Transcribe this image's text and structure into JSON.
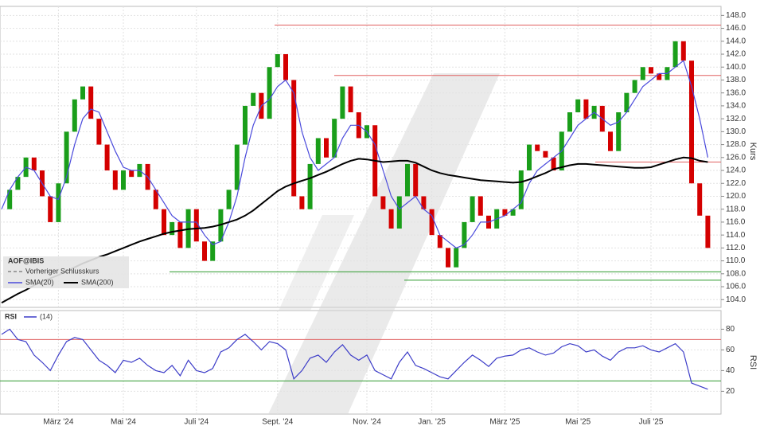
{
  "chart_data": [
    {
      "type": "candlestick",
      "x": [
        null,
        null,
        null,
        null,
        null,
        null,
        null,
        "März '24",
        null,
        null,
        null,
        null,
        null,
        null,
        null,
        "Mai '24",
        null,
        null,
        null,
        null,
        null,
        null,
        null,
        null,
        "Juli '24",
        null,
        null,
        null,
        null,
        null,
        null,
        null,
        null,
        null,
        "Sept. '24",
        null,
        null,
        null,
        null,
        null,
        null,
        null,
        null,
        null,
        null,
        "Nov. '24",
        null,
        null,
        null,
        null,
        null,
        null,
        null,
        "Jan. '25",
        null,
        null,
        null,
        null,
        null,
        null,
        null,
        null,
        "März '25",
        null,
        null,
        null,
        null,
        null,
        null,
        null,
        null,
        "Mai '25",
        null,
        null,
        null,
        null,
        null,
        null,
        null,
        null,
        "Juli '25",
        null,
        null,
        null,
        null,
        null,
        null,
        null
      ],
      "series": [
        {
          "name": "AOF@IBIS",
          "up_color": "#1a9e1a",
          "down_color": "#d40000",
          "values": [
            118,
            121,
            123,
            126,
            124,
            120,
            116,
            122,
            130,
            135,
            137,
            132,
            128,
            124,
            121,
            124,
            123,
            125,
            121,
            118,
            114,
            116,
            112,
            118,
            113,
            110,
            113,
            118,
            121,
            128,
            134,
            136,
            132,
            140,
            142,
            138,
            120,
            118,
            125,
            129,
            126,
            132,
            137,
            133,
            129,
            131,
            120,
            118,
            115,
            120,
            125,
            120,
            118,
            114,
            112,
            109,
            112,
            116,
            120,
            117,
            115,
            118,
            117,
            118,
            124,
            128,
            127,
            126,
            124,
            130,
            133,
            135,
            132,
            134,
            130,
            127,
            133,
            136,
            138,
            140,
            139,
            138,
            140,
            144,
            141,
            122,
            117,
            112
          ]
        },
        {
          "name": "SMA(20)",
          "color": "#4a4adc",
          "values": [
            118,
            121,
            123,
            124.5,
            124,
            122,
            120,
            119.5,
            123,
            128,
            132,
            133.5,
            133,
            130,
            127,
            124.5,
            124,
            124,
            123,
            121,
            119,
            117,
            116,
            116,
            116,
            114,
            112.5,
            113,
            116,
            120,
            126,
            131,
            134,
            135,
            137,
            138,
            136,
            130,
            126,
            124,
            125,
            126,
            129,
            131,
            131,
            130,
            128,
            124,
            120,
            118,
            119,
            120,
            118,
            117,
            114,
            113,
            112,
            112.5,
            114,
            116,
            116,
            116.5,
            117,
            118,
            119,
            122,
            124,
            125,
            126,
            127,
            129,
            131,
            132,
            133,
            132,
            131,
            131.5,
            133,
            135,
            137,
            138,
            139,
            139,
            140,
            141,
            137,
            132,
            126
          ]
        },
        {
          "name": "SMA(200)",
          "color": "#000000",
          "values": [
            103.5,
            104.2,
            104.9,
            105.5,
            106.2,
            106.8,
            107.3,
            107.8,
            108.4,
            109,
            109.6,
            110.1,
            110.6,
            111,
            111.5,
            112,
            112.5,
            113,
            113.4,
            113.8,
            114.2,
            114.5,
            114.7,
            114.9,
            115,
            115.1,
            115.3,
            115.6,
            116,
            116.4,
            117,
            117.8,
            118.8,
            119.8,
            120.8,
            121.5,
            122,
            122.4,
            122.8,
            123.3,
            123.8,
            124.4,
            125,
            125.5,
            125.8,
            125.7,
            125.5,
            125.3,
            125.4,
            125.5,
            125.5,
            125.2,
            124.6,
            124,
            123.6,
            123.3,
            123.1,
            122.9,
            122.7,
            122.5,
            122.4,
            122.3,
            122.2,
            122.1,
            122.2,
            122.6,
            123.1,
            123.6,
            124.2,
            124.5,
            124.8,
            125,
            125,
            124.9,
            124.8,
            124.7,
            124.6,
            124.5,
            124.4,
            124.4,
            124.5,
            124.9,
            125.3,
            125.7,
            126,
            125.9,
            125.5,
            125.3
          ]
        }
      ],
      "legend_extra": "Vorheriger Schlusskurs",
      "reference_lines": [
        {
          "value": 146.5,
          "color": "#e06060"
        },
        {
          "value": 138.7,
          "color": "#e06060"
        },
        {
          "value": 125.3,
          "color": "#e06060"
        },
        {
          "value": 108.3,
          "color": "#2e9a2e"
        },
        {
          "value": 107,
          "color": "#2e9a2e"
        }
      ],
      "ylabel": "Kurs",
      "ylim": [
        102.8,
        149.4
      ],
      "yticks": [
        {
          "value": 104,
          "label": "104.0"
        },
        {
          "value": 106,
          "label": "106.0"
        },
        {
          "value": 108,
          "label": "108.0"
        },
        {
          "value": 110,
          "label": "110.0"
        },
        {
          "value": 112,
          "label": "112.0"
        },
        {
          "value": 114,
          "label": "114.0"
        },
        {
          "value": 116,
          "label": "116.0"
        },
        {
          "value": 118,
          "label": "118.0"
        },
        {
          "value": 120,
          "label": "120.0"
        },
        {
          "value": 122,
          "label": "122.0"
        },
        {
          "value": 124,
          "label": "124.0"
        },
        {
          "value": 126,
          "label": "126.0"
        },
        {
          "value": 128,
          "label": "128.0"
        },
        {
          "value": 130,
          "label": "130.0"
        },
        {
          "value": 132,
          "label": "132.0"
        },
        {
          "value": 134,
          "label": "134.0"
        },
        {
          "value": 136,
          "label": "136.0"
        },
        {
          "value": 138,
          "label": "138.0"
        },
        {
          "value": 140,
          "label": "140.0"
        },
        {
          "value": 142,
          "label": "142.0"
        },
        {
          "value": 144,
          "label": "144.0"
        },
        {
          "value": 146,
          "label": "146.0"
        },
        {
          "value": 148,
          "label": "148.0"
        }
      ],
      "grid": true
    },
    {
      "type": "line",
      "series": [
        {
          "name": "RSI",
          "color": "#3c3cc8",
          "values": [
            75,
            80,
            70,
            68,
            55,
            48,
            40,
            55,
            68,
            72,
            70,
            60,
            50,
            45,
            38,
            50,
            48,
            52,
            45,
            40,
            38,
            45,
            35,
            50,
            40,
            38,
            42,
            58,
            62,
            70,
            75,
            68,
            60,
            68,
            66,
            60,
            32,
            40,
            52,
            55,
            48,
            58,
            65,
            55,
            50,
            55,
            40,
            36,
            32,
            48,
            58,
            45,
            42,
            38,
            34,
            32,
            40,
            48,
            55,
            50,
            44,
            52,
            54,
            55,
            60,
            62,
            58,
            55,
            57,
            63,
            66,
            64,
            58,
            60,
            54,
            50,
            58,
            62,
            62,
            64,
            60,
            58,
            62,
            66,
            58,
            28,
            25,
            22
          ]
        }
      ],
      "period_label": "(14)",
      "reference_lines": [
        {
          "value": 70,
          "color": "#e06060"
        },
        {
          "value": 30,
          "color": "#2e9a2e"
        }
      ],
      "ylabel": "RSI",
      "ylim": [
        -2,
        98
      ],
      "yticks": [
        20,
        40,
        60,
        80
      ],
      "grid": true
    }
  ]
}
